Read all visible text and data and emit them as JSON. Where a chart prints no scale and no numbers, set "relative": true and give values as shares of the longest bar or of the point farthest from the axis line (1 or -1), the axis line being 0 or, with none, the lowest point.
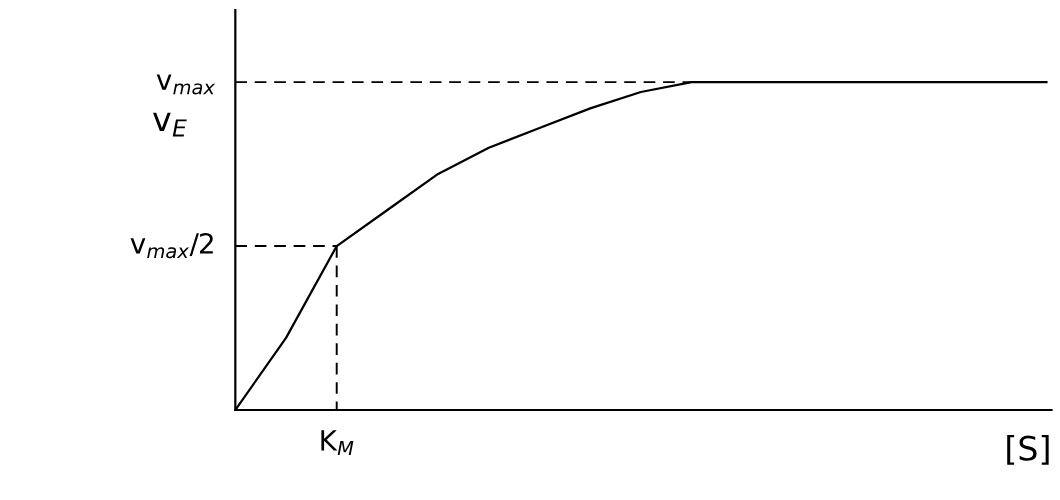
{
  "chart_data": {
    "type": "line",
    "xlabel": "[S]",
    "ylabel": "v$_{E}$",
    "relative": true,
    "legend": false,
    "marker": "none",
    "annotations": [
      "K$_{M}$"
    ],
    "categories": [
      null,
      null,
      null,
      null,
      null,
      null,
      null,
      null,
      null,
      null,
      null,
      null,
      null,
      null,
      null,
      null,
      null
    ],
    "series": [
      {
        "color": "#000000",
        "line_style": "solid",
        "values": [
          0,
          0.22,
          0.5,
          0.61,
          0.72,
          0.8,
          0.86,
          0.92,
          0.97,
          1.0,
          1.0,
          1.0,
          1.0,
          1.0,
          1.0,
          1.0,
          1.0
        ]
      }
    ],
    "ref_lines": [
      {
        "axis": "y",
        "value": 1,
        "label": "v$_{max}$",
        "color": "#000000",
        "line_style": "dashed"
      },
      {
        "axis": "y",
        "value": 0.5,
        "label": "v$_{max}$/2",
        "color": "#000000",
        "line_style": "dashed"
      }
    ]
  }
}
